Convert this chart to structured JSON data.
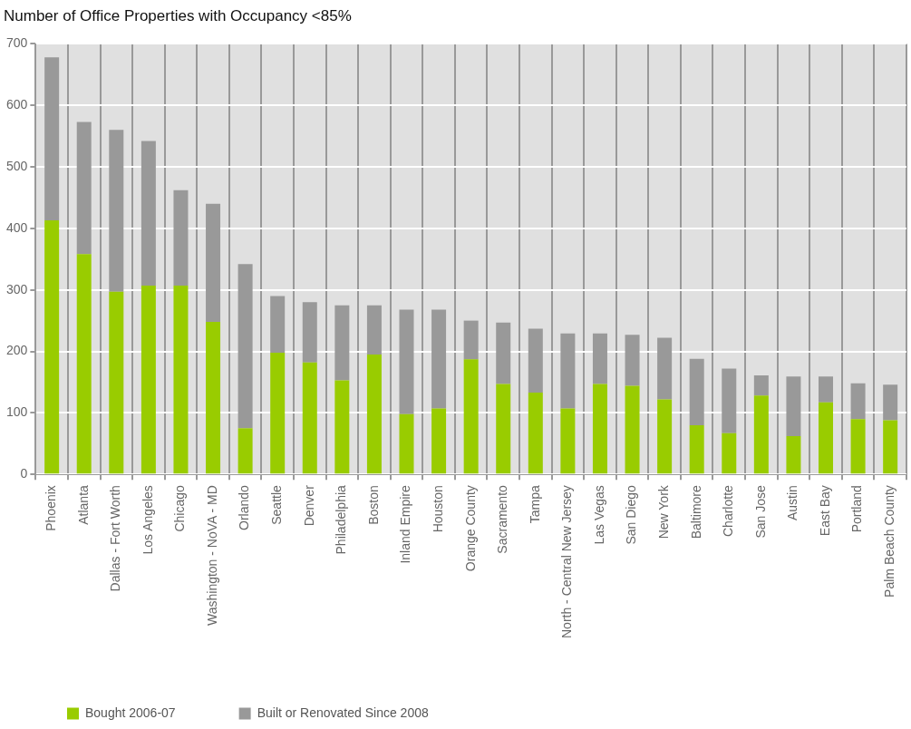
{
  "chart_data": {
    "type": "bar",
    "title": "Number of Office Properties with Occupancy <85%",
    "categories": [
      "Phoenix",
      "Atlanta",
      "Dallas - Fort Worth",
      "Los Angeles",
      "Chicago",
      "Washington - NoVA - MD",
      "Orlando",
      "Seattle",
      "Denver",
      "Philadelphia",
      "Boston",
      "Inland Empire",
      "Houston",
      "Orange County",
      "Sacramento",
      "Tampa",
      "North - Central New Jersey",
      "Las Vegas",
      "San Diego",
      "New York",
      "Baltimore",
      "Charlotte",
      "San Jose",
      "Austin",
      "East Bay",
      "Portland",
      "Palm Beach County"
    ],
    "series": [
      {
        "name": "Bought 2006-07",
        "color": "#99cc00",
        "values": [
          413,
          358,
          297,
          307,
          307,
          248,
          75,
          198,
          182,
          153,
          195,
          98,
          107,
          187,
          147,
          133,
          107,
          147,
          144,
          122,
          80,
          67,
          128,
          62,
          117,
          90,
          88
        ]
      },
      {
        "name": "Built or Renovated Since 2008",
        "color": "#999999",
        "values": [
          265,
          215,
          263,
          235,
          155,
          192,
          267,
          92,
          98,
          122,
          80,
          170,
          161,
          63,
          100,
          104,
          122,
          82,
          83,
          100,
          108,
          105,
          33,
          97,
          42,
          58,
          58
        ]
      }
    ],
    "stacked": true,
    "ylim": [
      0,
      700
    ],
    "yticks": [
      0,
      100,
      200,
      300,
      400,
      500,
      600,
      700
    ],
    "grid": true,
    "legend": "bottom left"
  }
}
